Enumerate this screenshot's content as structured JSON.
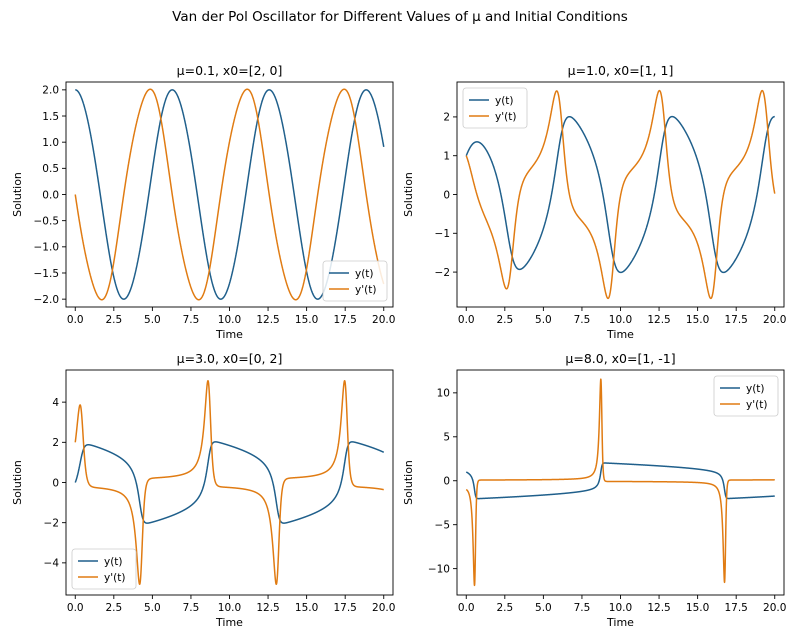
{
  "figure": {
    "title": "Van der Pol Oscillator for Different Values of μ and Initial Conditions"
  },
  "colors": {
    "y": "#1f5f8b",
    "yprime": "#e07b12",
    "axes": "#000000",
    "background": "#ffffff"
  },
  "chart_data": [
    {
      "type": "line",
      "title": "μ=0.1, x0=[2, 0]",
      "mu": 0.1,
      "x0": [
        2,
        0
      ],
      "xlabel": "Time",
      "ylabel": "Solution",
      "xlim": [
        -0.6,
        20.6
      ],
      "ylim": [
        -2.15,
        2.15
      ],
      "xticks": [
        0.0,
        2.5,
        5.0,
        7.5,
        10.0,
        12.5,
        15.0,
        17.5,
        20.0
      ],
      "xtick_labels": [
        "0.0",
        "2.5",
        "5.0",
        "7.5",
        "10.0",
        "12.5",
        "15.0",
        "17.5",
        "20.0"
      ],
      "yticks": [
        -2.0,
        -1.5,
        -1.0,
        -0.5,
        0.0,
        0.5,
        1.0,
        1.5,
        2.0
      ],
      "ytick_labels": [
        "−2.0",
        "−1.5",
        "−1.0",
        "−0.5",
        "0.0",
        "0.5",
        "1.0",
        "1.5",
        "2.0"
      ],
      "legend_position": "lower-right",
      "grid": false,
      "series": [
        {
          "name": "y(t)",
          "key": "y",
          "values_note": "numerically integrated from mu and x0"
        },
        {
          "name": "y'(t)",
          "key": "yprime",
          "values_note": "numerically integrated from mu and x0"
        }
      ]
    },
    {
      "type": "line",
      "title": "μ=1.0, x0=[1, 1]",
      "mu": 1.0,
      "x0": [
        1,
        1
      ],
      "xlabel": "Time",
      "ylabel": "Solution",
      "xlim": [
        -0.6,
        20.6
      ],
      "ylim": [
        -2.9,
        2.9
      ],
      "xticks": [
        0.0,
        2.5,
        5.0,
        7.5,
        10.0,
        12.5,
        15.0,
        17.5,
        20.0
      ],
      "xtick_labels": [
        "0.0",
        "2.5",
        "5.0",
        "7.5",
        "10.0",
        "12.5",
        "15.0",
        "17.5",
        "20.0"
      ],
      "yticks": [
        -2,
        -1,
        0,
        1,
        2
      ],
      "ytick_labels": [
        "−2",
        "−1",
        "0",
        "1",
        "2"
      ],
      "legend_position": "upper-left",
      "grid": false,
      "series": [
        {
          "name": "y(t)",
          "key": "y",
          "values_note": "numerically integrated from mu and x0"
        },
        {
          "name": "y'(t)",
          "key": "yprime",
          "values_note": "numerically integrated from mu and x0"
        }
      ]
    },
    {
      "type": "line",
      "title": "μ=3.0, x0=[0, 2]",
      "mu": 3.0,
      "x0": [
        0,
        2
      ],
      "xlabel": "Time",
      "ylabel": "Solution",
      "xlim": [
        -0.6,
        20.6
      ],
      "ylim": [
        -5.6,
        5.6
      ],
      "xticks": [
        0.0,
        2.5,
        5.0,
        7.5,
        10.0,
        12.5,
        15.0,
        17.5,
        20.0
      ],
      "xtick_labels": [
        "0.0",
        "2.5",
        "5.0",
        "7.5",
        "10.0",
        "12.5",
        "15.0",
        "17.5",
        "20.0"
      ],
      "yticks": [
        -4,
        -2,
        0,
        2,
        4
      ],
      "ytick_labels": [
        "−4",
        "−2",
        "0",
        "2",
        "4"
      ],
      "legend_position": "lower-left",
      "grid": false,
      "series": [
        {
          "name": "y(t)",
          "key": "y",
          "values_note": "numerically integrated from mu and x0"
        },
        {
          "name": "y'(t)",
          "key": "yprime",
          "values_note": "numerically integrated from mu and x0"
        }
      ]
    },
    {
      "type": "line",
      "title": "μ=8.0, x0=[1, -1]",
      "mu": 8.0,
      "x0": [
        1,
        -1
      ],
      "xlabel": "Time",
      "ylabel": "Solution",
      "xlim": [
        -0.6,
        20.6
      ],
      "ylim": [
        -13.0,
        12.6
      ],
      "xticks": [
        0.0,
        2.5,
        5.0,
        7.5,
        10.0,
        12.5,
        15.0,
        17.5,
        20.0
      ],
      "xtick_labels": [
        "0.0",
        "2.5",
        "5.0",
        "7.5",
        "10.0",
        "12.5",
        "15.0",
        "17.5",
        "20.0"
      ],
      "yticks": [
        -10,
        -5,
        0,
        5,
        10
      ],
      "ytick_labels": [
        "−10",
        "−5",
        "0",
        "5",
        "10"
      ],
      "legend_position": "upper-right",
      "grid": false,
      "series": [
        {
          "name": "y(t)",
          "key": "y",
          "values_note": "numerically integrated from mu and x0"
        },
        {
          "name": "y'(t)",
          "key": "yprime",
          "values_note": "numerically integrated from mu and x0"
        }
      ]
    }
  ]
}
